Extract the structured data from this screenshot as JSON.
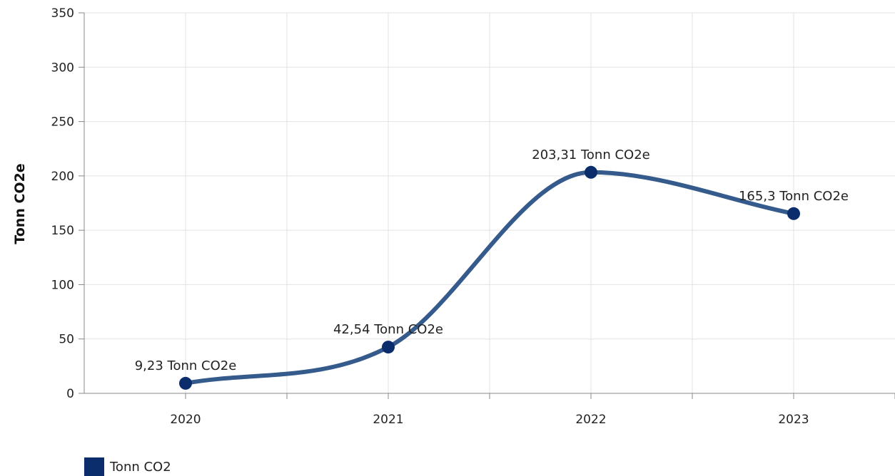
{
  "chart_data": {
    "type": "line",
    "x": [
      "2020",
      "2021",
      "2022",
      "2023"
    ],
    "series": [
      {
        "name": "Tonn CO2",
        "values": [
          9.23,
          42.54,
          203.31,
          165.3
        ],
        "data_labels": [
          "9,23 Tonn CO2e",
          "42,54 Tonn CO2e",
          "203,31 Tonn CO2e",
          "165,3 Tonn CO2e"
        ],
        "color": "#355a8c",
        "marker_color": "#0c2d6b"
      }
    ],
    "ylabel": "Tonn CO2e",
    "xlabel": "",
    "ylim": [
      0,
      350
    ],
    "yticks": [
      "0",
      "50",
      "100",
      "150",
      "200",
      "250",
      "300",
      "350"
    ],
    "smooth": true,
    "grid": true,
    "legend_position": "bottom-left"
  }
}
